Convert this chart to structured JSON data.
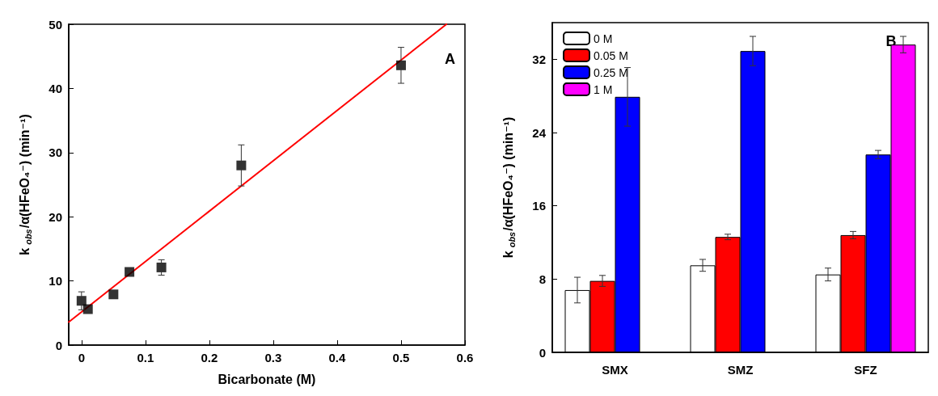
{
  "chart_data": [
    {
      "type": "scatter",
      "xlabel": "Bicarbonate (M)",
      "ylabel": "k$_{obs}$/α(HFeO₄⁻) (min⁻¹)",
      "annotations": [
        "A"
      ],
      "xlim": [
        -0.02,
        0.6
      ],
      "xticks": [
        0,
        0.1,
        0.2,
        0.3,
        0.4,
        0.5,
        0.6
      ],
      "ylim": [
        0,
        50
      ],
      "yticks": [
        0,
        10,
        20,
        30,
        40,
        50
      ],
      "grid": false,
      "legend": false,
      "series": [
        {
          "type": "scatter",
          "marker": "square",
          "color": "#000000",
          "x": [
            0,
            0.01,
            0.05,
            0.075,
            0.125,
            0.25,
            0.5
          ],
          "values": [
            6.9,
            5.6,
            7.9,
            11.4,
            12.1,
            28.0,
            43.6
          ],
          "errors": [
            1.4,
            null,
            null,
            null,
            1.2,
            3.2,
            2.8
          ]
        },
        {
          "type": "line",
          "color": "#ff0000",
          "x": [
            -0.02,
            0.571
          ],
          "values": [
            3.6,
            50
          ]
        }
      ]
    },
    {
      "type": "bar",
      "ylabel": "k$_{obs}$/α(HFeO₄⁻) (min⁻¹)",
      "annotations": [
        "B"
      ],
      "categories": [
        "SMX",
        "SMZ",
        "SFZ"
      ],
      "ylim": [
        0,
        36
      ],
      "yticks": [
        0,
        8,
        16,
        24,
        32
      ],
      "grid": false,
      "legend": "top left",
      "series": [
        {
          "name": "0 M",
          "color": "#ffffff",
          "values": [
            6.8,
            9.5,
            8.5
          ],
          "errors": [
            1.4,
            0.65,
            0.7
          ]
        },
        {
          "name": "0.05 M",
          "color": "#ff0000",
          "values": [
            7.8,
            12.6,
            12.8
          ],
          "errors": [
            0.6,
            0.3,
            0.4
          ]
        },
        {
          "name": "0.25 M",
          "color": "#0000ff",
          "values": [
            27.9,
            32.9,
            21.6
          ],
          "errors": [
            3.2,
            1.6,
            0.45
          ]
        },
        {
          "name": "1 M",
          "color": "#ff00ff",
          "values": [
            null,
            null,
            33.6
          ],
          "errors": [
            null,
            null,
            0.9
          ]
        }
      ]
    }
  ]
}
